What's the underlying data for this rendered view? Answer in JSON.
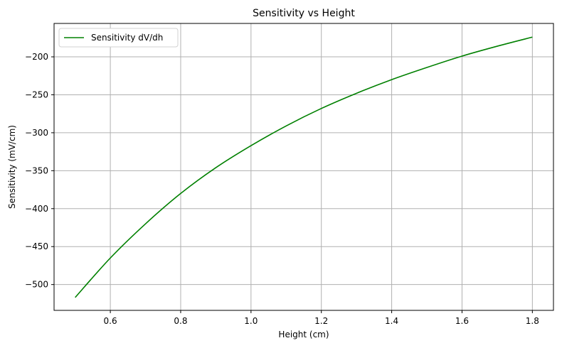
{
  "chart_data": {
    "type": "line",
    "title": "Sensitivity vs Height",
    "xlabel": "Height (cm)",
    "ylabel": "Sensitivity (mV/cm)",
    "xlim": [
      0.44,
      1.86
    ],
    "ylim": [
      -534,
      -156
    ],
    "xticks": [
      0.6,
      0.8,
      1.0,
      1.2,
      1.4,
      1.6,
      1.8
    ],
    "xtick_labels": [
      "0.6",
      "0.8",
      "1.0",
      "1.2",
      "1.4",
      "1.6",
      "1.8"
    ],
    "yticks": [
      -500,
      -450,
      -400,
      -350,
      -300,
      -250,
      -200
    ],
    "ytick_labels": [
      "−500",
      "−450",
      "−400",
      "−350",
      "−300",
      "−250",
      "−200"
    ],
    "grid": true,
    "legend_position": "top-left",
    "series": [
      {
        "name": "Sensitivity dV/dh",
        "color": "#008000",
        "x": [
          0.5,
          0.6,
          0.7,
          0.8,
          0.9,
          1.0,
          1.1,
          1.2,
          1.3,
          1.4,
          1.5,
          1.6,
          1.7,
          1.8
        ],
        "y": [
          -517,
          -465,
          -420,
          -380,
          -346,
          -317,
          -291,
          -268,
          -248,
          -230,
          -214,
          -199,
          -186,
          -174
        ]
      }
    ]
  }
}
